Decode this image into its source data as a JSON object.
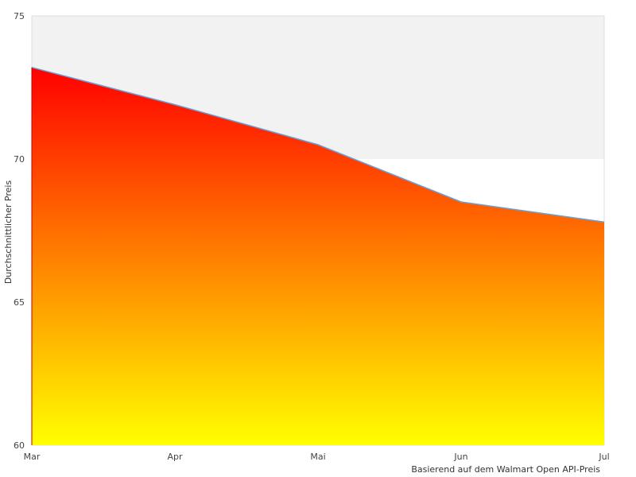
{
  "chart_data": {
    "type": "area",
    "categories": [
      "Mar",
      "Apr",
      "Mai",
      "Jun",
      "Jul"
    ],
    "series": [
      {
        "values": [
          73.2,
          71.9,
          70.5,
          68.5,
          67.8
        ]
      }
    ],
    "ylabel": "Durchschnittlicher Preis",
    "xlabel": "",
    "ylim": [
      60,
      75
    ],
    "yticks": [
      60,
      65,
      70,
      75
    ],
    "source_note": "Basierend auf dem Walmart Open API-Preis",
    "grid": "alternating horizontal bands",
    "legend": "none",
    "colors": {
      "fill_top": "#ff0000",
      "fill_bottom": "#ffff00",
      "line": "#6aa0d8",
      "band": "#f2f2f2",
      "frame": "#dddddd"
    }
  }
}
